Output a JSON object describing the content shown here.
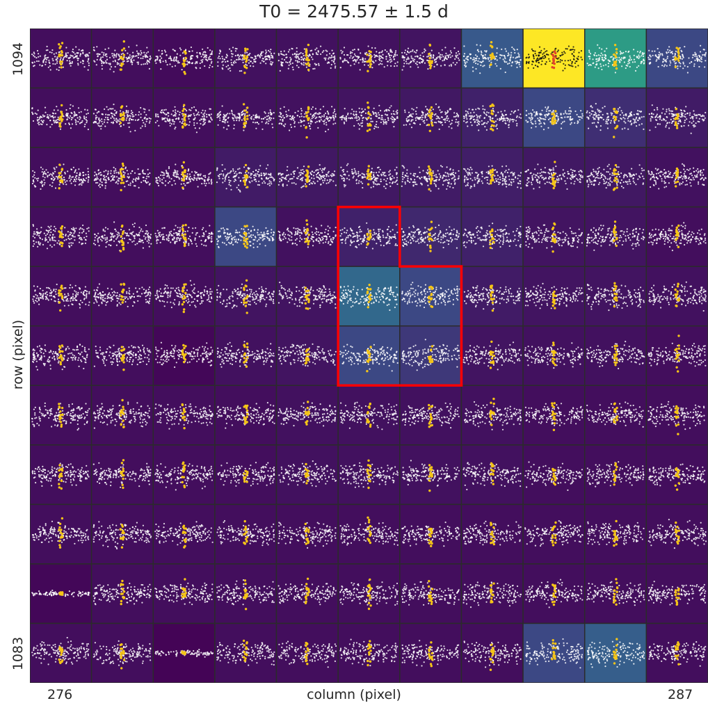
{
  "chart_data": {
    "type": "scatter",
    "title": "T0 = 2475.57 ± 1.5 d",
    "xlabel": "column (pixel)",
    "ylabel": "row (pixel)",
    "x_ticks": {
      "first": "276",
      "last": "287"
    },
    "y_ticks": {
      "top": "1094",
      "bottom": "1083"
    },
    "columns": 11,
    "rows": 11,
    "colors": {
      "in_transit": "#f5c518",
      "out_of_transit": "#ffffff",
      "aperture": "#ff0000",
      "cell_border": "#2b2b2b",
      "colormap": [
        "#440154",
        "#3b528b",
        "#21908d",
        "#5dc963",
        "#fde725"
      ]
    },
    "background_level": [
      [
        0.04,
        0.04,
        0.03,
        0.05,
        0.05,
        0.05,
        0.06,
        0.28,
        1.0,
        0.55,
        0.22
      ],
      [
        0.04,
        0.04,
        0.04,
        0.05,
        0.05,
        0.06,
        0.07,
        0.1,
        0.22,
        0.14,
        0.08
      ],
      [
        0.04,
        0.04,
        0.04,
        0.08,
        0.07,
        0.07,
        0.08,
        0.09,
        0.07,
        0.07,
        0.05
      ],
      [
        0.04,
        0.04,
        0.04,
        0.22,
        0.05,
        0.1,
        0.12,
        0.1,
        0.06,
        0.06,
        0.04
      ],
      [
        0.04,
        0.04,
        0.04,
        0.06,
        0.06,
        0.34,
        0.22,
        0.08,
        0.06,
        0.06,
        0.05
      ],
      [
        0.04,
        0.04,
        0.02,
        0.05,
        0.06,
        0.22,
        0.17,
        0.06,
        0.05,
        0.05,
        0.04
      ],
      [
        0.04,
        0.04,
        0.04,
        0.04,
        0.05,
        0.05,
        0.05,
        0.05,
        0.04,
        0.04,
        0.04
      ],
      [
        0.04,
        0.04,
        0.04,
        0.04,
        0.05,
        0.05,
        0.05,
        0.05,
        0.04,
        0.04,
        0.04
      ],
      [
        0.04,
        0.04,
        0.04,
        0.04,
        0.04,
        0.04,
        0.04,
        0.04,
        0.04,
        0.04,
        0.04
      ],
      [
        0.02,
        0.04,
        0.04,
        0.04,
        0.04,
        0.04,
        0.04,
        0.04,
        0.04,
        0.04,
        0.04
      ],
      [
        0.04,
        0.04,
        0.01,
        0.04,
        0.04,
        0.04,
        0.04,
        0.04,
        0.22,
        0.3,
        0.04
      ]
    ],
    "aperture_pixels": [
      [
        3,
        5
      ],
      [
        4,
        5
      ],
      [
        4,
        6
      ],
      [
        5,
        5
      ],
      [
        5,
        6
      ]
    ]
  }
}
